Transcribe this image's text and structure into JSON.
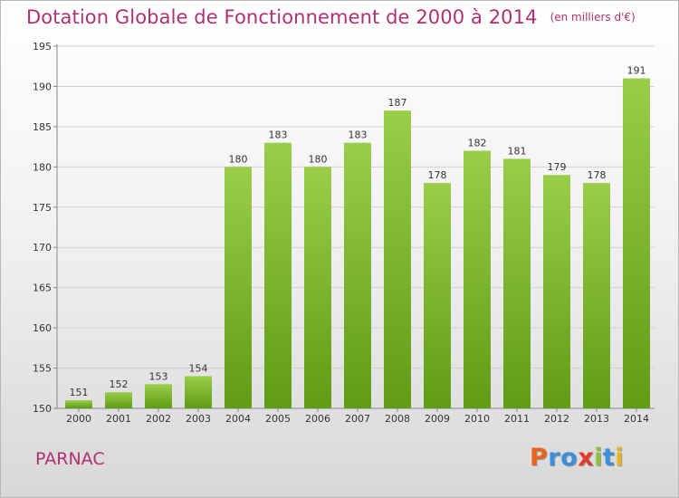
{
  "title": "Dotation Globale de Fonctionnement de 2000 à 2014",
  "unit_note": "(en milliers d'€)",
  "commune": "PARNAC",
  "logo": {
    "text": "Proxiti",
    "letters": [
      {
        "ch": "P",
        "color": "#e8641c"
      },
      {
        "ch": "r",
        "color": "#3a8fd8"
      },
      {
        "ch": "o",
        "color": "#3a8fd8"
      },
      {
        "ch": "x",
        "color": "#e23a2a"
      },
      {
        "ch": "i",
        "color": "#8ac43a"
      },
      {
        "ch": "t",
        "color": "#3a8fd8"
      },
      {
        "ch": "i",
        "color": "#e8b41c"
      }
    ]
  },
  "colors": {
    "title": "#b03070",
    "bar_light": "#9acd4a",
    "bar_dark": "#5f9c14"
  },
  "chart_data": {
    "type": "bar",
    "title": "Dotation Globale de Fonctionnement de 2000 à 2014",
    "subtitle": "(en milliers d'€)",
    "xlabel": "",
    "ylabel": "",
    "categories": [
      "2000",
      "2001",
      "2002",
      "2003",
      "2004",
      "2005",
      "2006",
      "2007",
      "2008",
      "2009",
      "2010",
      "2011",
      "2012",
      "2013",
      "2014"
    ],
    "values": [
      151,
      152,
      153,
      154,
      180,
      183,
      180,
      183,
      187,
      178,
      182,
      181,
      179,
      178,
      191
    ],
    "ylim": [
      150,
      195
    ],
    "yticks": [
      150,
      155,
      160,
      165,
      170,
      175,
      180,
      185,
      190,
      195
    ],
    "grid": true,
    "legend": "none"
  }
}
